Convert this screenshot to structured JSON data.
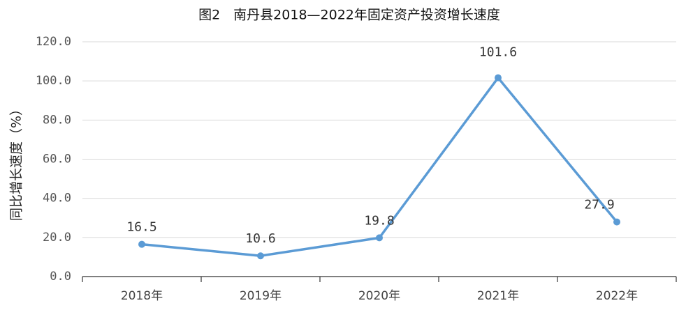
{
  "chart_data": {
    "type": "line",
    "title": "图2　南丹县2018—2022年固定资产投资增长速度",
    "y_label": "同比增长速度（%）",
    "categories": [
      "2018年",
      "2019年",
      "2020年",
      "2021年",
      "2022年"
    ],
    "series": [
      {
        "name": "同比增长速度",
        "color": "#5b9bd5",
        "values": [
          16.5,
          10.6,
          19.8,
          101.6,
          27.9
        ]
      }
    ],
    "ylim": [
      0,
      120
    ],
    "yticks": [
      {
        "value": 0,
        "label": "0.0"
      },
      {
        "value": 20,
        "label": "20.0"
      },
      {
        "value": 40,
        "label": "40.0"
      },
      {
        "value": 60,
        "label": "60.0"
      },
      {
        "value": 80,
        "label": "80.0"
      },
      {
        "value": 100,
        "label": "100.0"
      },
      {
        "value": 120,
        "label": "120.0"
      }
    ],
    "grid": true
  }
}
